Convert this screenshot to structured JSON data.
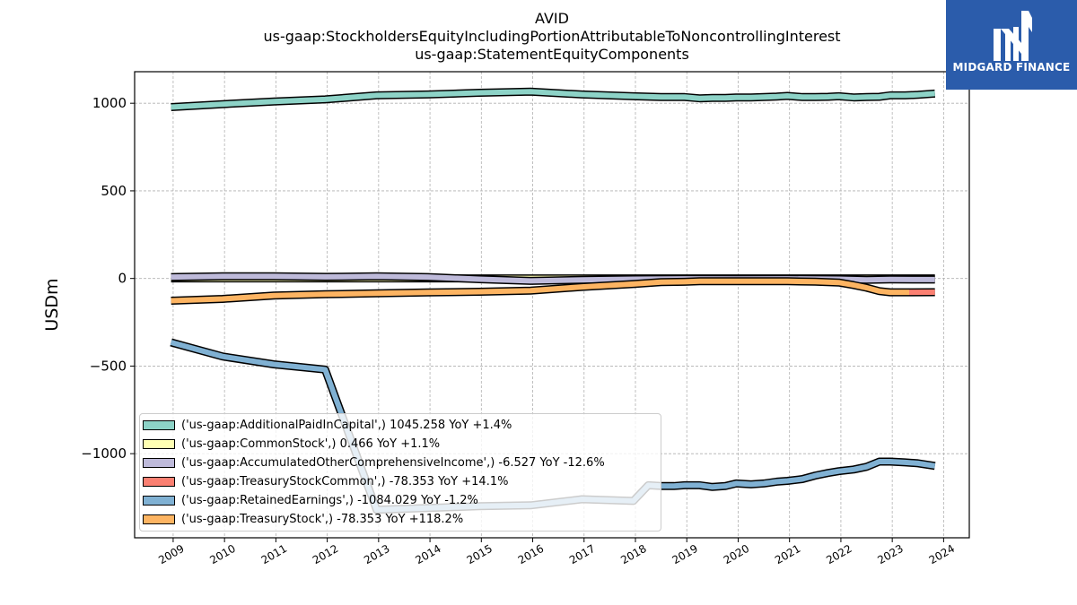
{
  "titles": {
    "line1": "AVID",
    "line2": "us-gaap:StockholdersEquityIncludingPortionAttributableToNoncontrollingInterest",
    "line3": "us-gaap:StatementEquityComponents"
  },
  "logo": {
    "text": "MIDGARD FINANCE",
    "bg_color": "#2b5cab"
  },
  "chart_data": {
    "type": "line",
    "ylabel": "USDm",
    "xlabel": "",
    "ylim": [
      -1480,
      1180
    ],
    "xlim": [
      2008.25,
      2024.5
    ],
    "yticks": [
      1000,
      500,
      0,
      -500,
      -1000
    ],
    "ytick_labels": [
      "1000",
      "500",
      "0",
      "−500",
      "−1000"
    ],
    "xticks": [
      2009,
      2010,
      2011,
      2012,
      2013,
      2014,
      2015,
      2016,
      2017,
      2018,
      2019,
      2020,
      2021,
      2022,
      2023,
      2024
    ],
    "grid": true,
    "legend_position": "lower-left",
    "series": [
      {
        "name": "('us-gaap:AdditionalPaidInCapital',) 1045.258 YoY +1.4%",
        "color": "#8dd3c7",
        "points": [
          [
            2008.96,
            978
          ],
          [
            2009.96,
            995
          ],
          [
            2010.96,
            1010
          ],
          [
            2011.96,
            1022
          ],
          [
            2012.96,
            1045
          ],
          [
            2013.96,
            1050
          ],
          [
            2014.96,
            1060
          ],
          [
            2015.96,
            1066
          ],
          [
            2016.96,
            1050
          ],
          [
            2017.96,
            1040
          ],
          [
            2018.5,
            1035
          ],
          [
            2018.96,
            1035
          ],
          [
            2019.25,
            1028
          ],
          [
            2019.5,
            1030
          ],
          [
            2019.75,
            1030
          ],
          [
            2019.96,
            1033
          ],
          [
            2020.25,
            1033
          ],
          [
            2020.5,
            1035
          ],
          [
            2020.75,
            1038
          ],
          [
            2020.96,
            1042
          ],
          [
            2021.25,
            1035
          ],
          [
            2021.5,
            1036
          ],
          [
            2021.75,
            1037
          ],
          [
            2021.96,
            1040
          ],
          [
            2022.25,
            1033
          ],
          [
            2022.5,
            1035
          ],
          [
            2022.75,
            1037
          ],
          [
            2022.96,
            1045
          ],
          [
            2023.25,
            1045
          ],
          [
            2023.5,
            1048
          ],
          [
            2023.83,
            1055
          ]
        ]
      },
      {
        "name": "('us-gaap:CommonStock',) 0.466 YoY +1.1%",
        "color": "#ffffb3",
        "points": [
          [
            2008.96,
            0.4
          ],
          [
            2012.96,
            0.4
          ],
          [
            2016.96,
            0.4
          ],
          [
            2020.96,
            0.45
          ],
          [
            2023.83,
            0.47
          ]
        ]
      },
      {
        "name": "('us-gaap:AccumulatedOtherComprehensiveIncome',) -6.527 YoY -12.6%",
        "color": "#bebada",
        "points": [
          [
            2008.96,
            8
          ],
          [
            2009.96,
            12
          ],
          [
            2010.96,
            12
          ],
          [
            2011.96,
            9
          ],
          [
            2012.96,
            12
          ],
          [
            2013.96,
            8
          ],
          [
            2014.96,
            -4
          ],
          [
            2015.96,
            -14
          ],
          [
            2016.96,
            -8
          ],
          [
            2017.96,
            -4
          ],
          [
            2018.96,
            -2
          ],
          [
            2019.96,
            -3
          ],
          [
            2020.96,
            -2
          ],
          [
            2021.96,
            -4
          ],
          [
            2022.5,
            -8
          ],
          [
            2022.96,
            -6
          ],
          [
            2023.83,
            -6.5
          ]
        ]
      },
      {
        "name": "('us-gaap:TreasuryStockCommon',) -78.353 YoY +14.1%",
        "color": "#fb8072",
        "points": [
          [
            2023.33,
            -79
          ],
          [
            2023.83,
            -78.353
          ]
        ]
      },
      {
        "name": "('us-gaap:RetainedEarnings',) -1084.029 YoY -1.2%",
        "color": "#80b1d3",
        "points": [
          [
            2008.96,
            -365
          ],
          [
            2009.96,
            -445
          ],
          [
            2010.96,
            -490
          ],
          [
            2011.96,
            -520
          ],
          [
            2012.96,
            -1320
          ],
          [
            2013.96,
            -1310
          ],
          [
            2014.96,
            -1300
          ],
          [
            2015.96,
            -1295
          ],
          [
            2016.96,
            -1260
          ],
          [
            2017.96,
            -1270
          ],
          [
            2018.25,
            -1180
          ],
          [
            2018.5,
            -1185
          ],
          [
            2018.75,
            -1185
          ],
          [
            2018.96,
            -1180
          ],
          [
            2019.25,
            -1180
          ],
          [
            2019.5,
            -1190
          ],
          [
            2019.75,
            -1185
          ],
          [
            2019.96,
            -1170
          ],
          [
            2020.25,
            -1175
          ],
          [
            2020.5,
            -1170
          ],
          [
            2020.75,
            -1160
          ],
          [
            2020.96,
            -1155
          ],
          [
            2021.25,
            -1145
          ],
          [
            2021.5,
            -1125
          ],
          [
            2021.75,
            -1110
          ],
          [
            2021.96,
            -1100
          ],
          [
            2022.25,
            -1090
          ],
          [
            2022.5,
            -1075
          ],
          [
            2022.75,
            -1045
          ],
          [
            2022.96,
            -1045
          ],
          [
            2023.25,
            -1050
          ],
          [
            2023.5,
            -1055
          ],
          [
            2023.83,
            -1070
          ]
        ]
      },
      {
        "name": "('us-gaap:TreasuryStock',) -78.353 YoY +118.2%",
        "color": "#fdb462",
        "points": [
          [
            2008.96,
            -127
          ],
          [
            2009.96,
            -117
          ],
          [
            2010.96,
            -98
          ],
          [
            2011.96,
            -90
          ],
          [
            2012.96,
            -85
          ],
          [
            2013.96,
            -80
          ],
          [
            2014.96,
            -76
          ],
          [
            2015.96,
            -69
          ],
          [
            2016.96,
            -48
          ],
          [
            2017.96,
            -32
          ],
          [
            2018.5,
            -21
          ],
          [
            2018.96,
            -19
          ],
          [
            2019.25,
            -16
          ],
          [
            2019.96,
            -16
          ],
          [
            2020.96,
            -16
          ],
          [
            2021.5,
            -18
          ],
          [
            2021.96,
            -23
          ],
          [
            2022.25,
            -38
          ],
          [
            2022.5,
            -53
          ],
          [
            2022.75,
            -72
          ],
          [
            2022.96,
            -79
          ],
          [
            2023.25,
            -79
          ],
          [
            2023.33,
            -79
          ]
        ]
      }
    ]
  }
}
